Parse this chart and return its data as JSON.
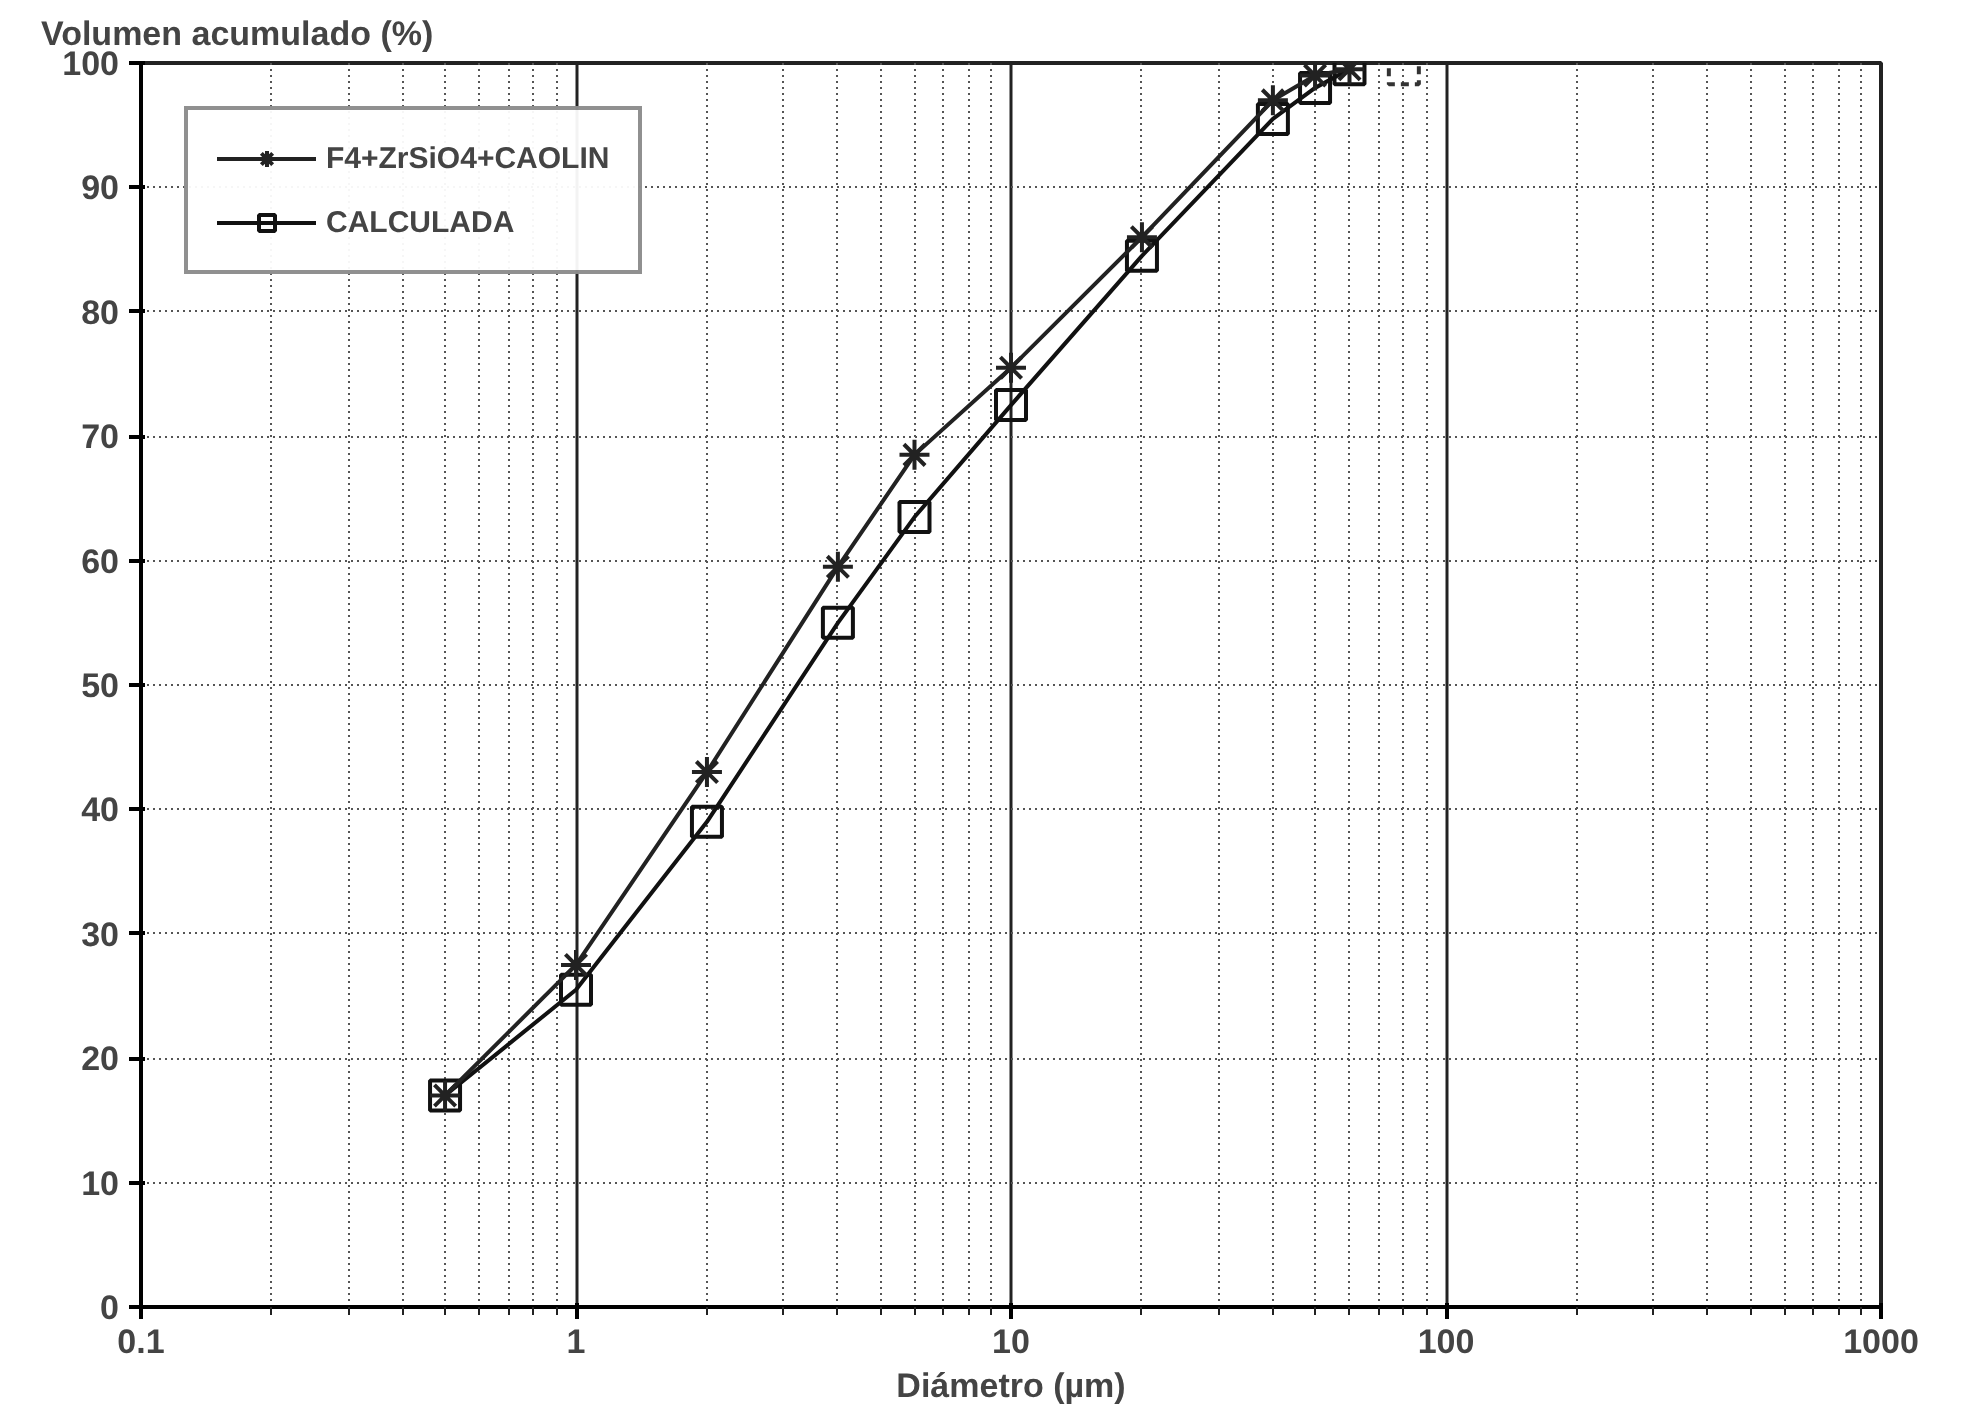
{
  "chart_data": {
    "type": "line",
    "xlabel": "Diámetro (µm)",
    "ylabel": "Volumen acumulado (%)",
    "log": "x",
    "xlim": [
      0.1,
      1000
    ],
    "xticks": [
      0.1,
      1,
      10,
      100,
      1000
    ],
    "ylim": [
      0,
      100
    ],
    "yticks": [
      0,
      10,
      20,
      30,
      40,
      50,
      60,
      70,
      80,
      90,
      100
    ],
    "grid": true,
    "legend": "top left",
    "series": [
      {
        "name": "F4+ZrSiO4+CAOLIN",
        "color": "#222222",
        "marker": "cross",
        "x": [
          0.5,
          1,
          2,
          4,
          6,
          10,
          20,
          40,
          50,
          60
        ],
        "values": [
          17,
          27.5,
          43,
          59.5,
          68.5,
          75.5,
          86,
          97,
          99,
          99.5
        ]
      },
      {
        "name": "CALCULADA",
        "color": "#111111",
        "marker": "square",
        "x": [
          0.5,
          1,
          2,
          4,
          6,
          10,
          20,
          40,
          50,
          60
        ],
        "values": [
          17,
          25.5,
          39,
          55,
          63.5,
          72.5,
          84.5,
          95.5,
          98,
          99.5
        ]
      },
      {
        "type": "scatter",
        "color": "#333333",
        "marker": "square",
        "line_style": "dashed",
        "x": [
          80
        ],
        "values": [
          99.5
        ]
      }
    ]
  }
}
